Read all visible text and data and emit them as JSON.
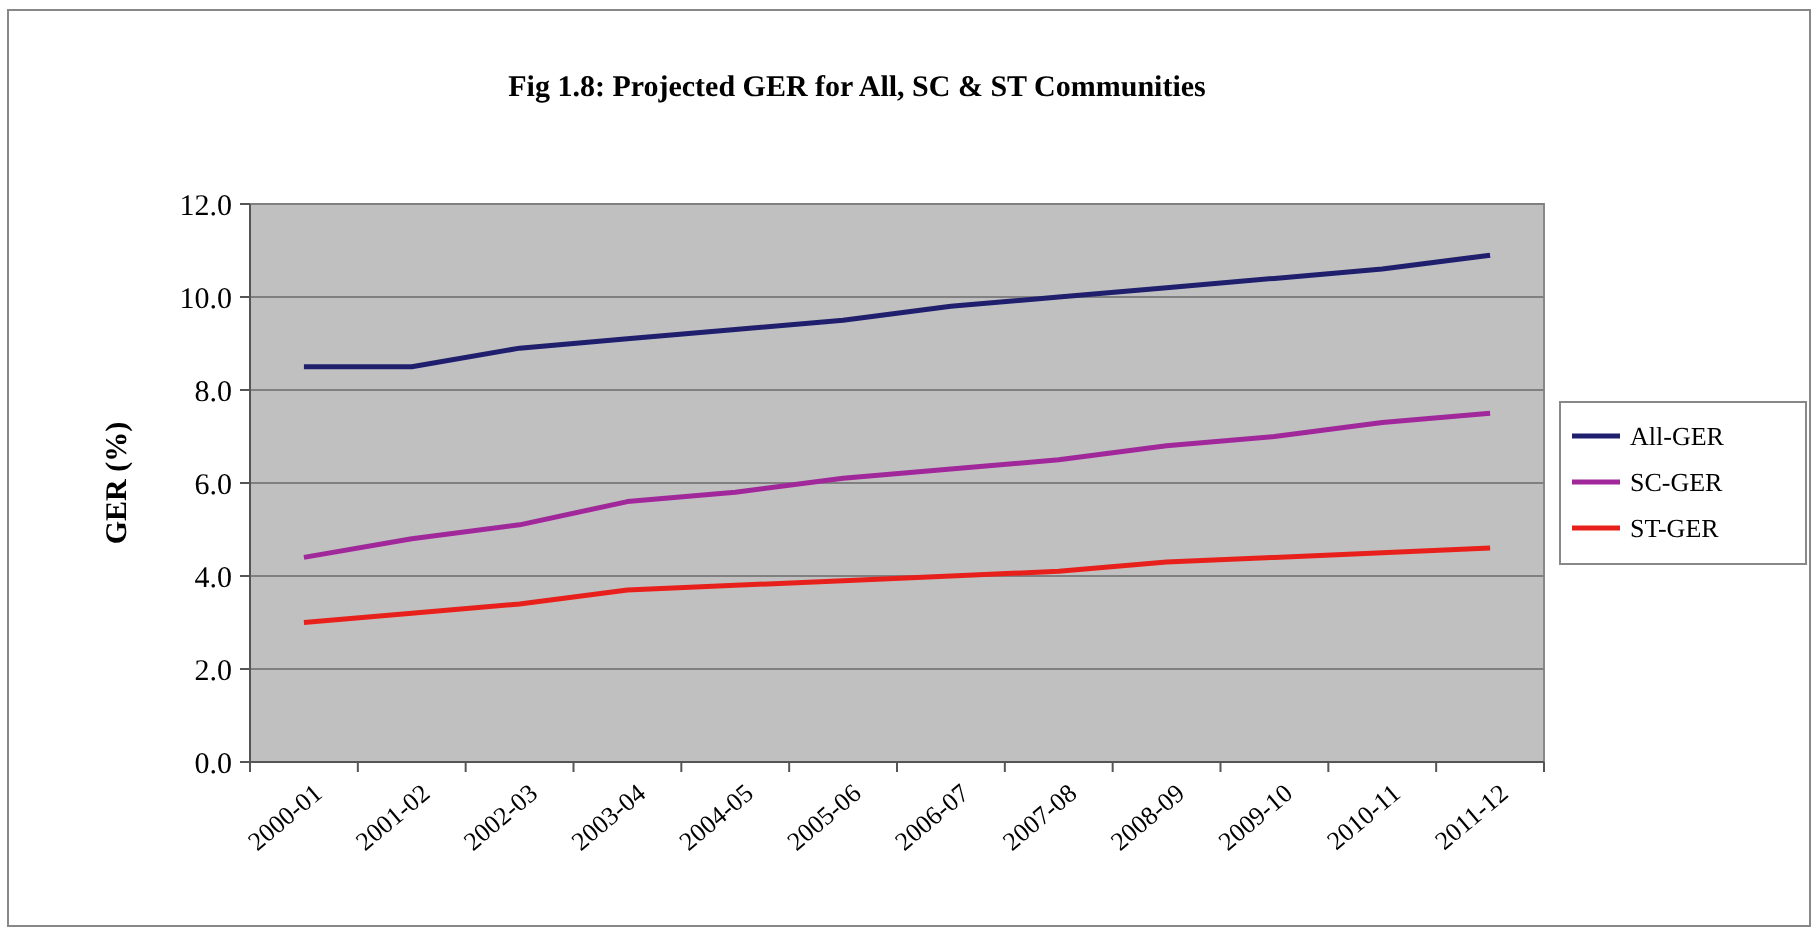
{
  "chart_data": {
    "type": "line",
    "title": "Fig 1.8: Projected GER for All, SC & ST Communities",
    "ylabel": "GER (%)",
    "categories": [
      "2000-01",
      "2001-02",
      "2002-03",
      "2003-04",
      "2004-05",
      "2005-06",
      "2006-07",
      "2007-08",
      "2008-09",
      "2009-10",
      "2010-11",
      "2011-12"
    ],
    "series": [
      {
        "name": "All-GER",
        "color": "#1f1f6e",
        "values": [
          8.5,
          8.5,
          8.9,
          9.1,
          9.3,
          9.5,
          9.8,
          10.0,
          10.2,
          10.4,
          10.6,
          10.9
        ]
      },
      {
        "name": "SC-GER",
        "color": "#a0289a",
        "values": [
          4.4,
          4.8,
          5.1,
          5.6,
          5.8,
          6.1,
          6.3,
          6.5,
          6.8,
          7.0,
          7.3,
          7.5
        ]
      },
      {
        "name": "ST-GER",
        "color": "#e8201c",
        "values": [
          3.0,
          3.2,
          3.4,
          3.7,
          3.8,
          3.9,
          4.0,
          4.1,
          4.3,
          4.4,
          4.5,
          4.6
        ]
      }
    ],
    "ylim": [
      0,
      12
    ],
    "yticks": [
      {
        "value": 0,
        "label": "0.0"
      },
      {
        "value": 2,
        "label": "2.0"
      },
      {
        "value": 4,
        "label": "4.0"
      },
      {
        "value": 6,
        "label": "6.0"
      },
      {
        "value": 8,
        "label": "8.0"
      },
      {
        "value": 10,
        "label": "10.0"
      },
      {
        "value": 12,
        "label": "12.0"
      }
    ],
    "grid": "y",
    "legend": "right",
    "line_style": "solid",
    "marker": "none"
  }
}
